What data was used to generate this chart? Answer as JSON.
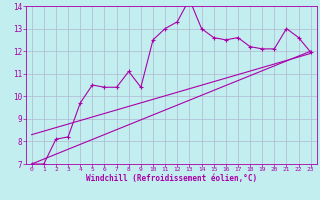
{
  "xlabel": "Windchill (Refroidissement éolien,°C)",
  "xlim": [
    -0.5,
    23.5
  ],
  "ylim": [
    7,
    14
  ],
  "xticks": [
    0,
    1,
    2,
    3,
    4,
    5,
    6,
    7,
    8,
    9,
    10,
    11,
    12,
    13,
    14,
    15,
    16,
    17,
    18,
    19,
    20,
    21,
    22,
    23
  ],
  "yticks": [
    7,
    8,
    9,
    10,
    11,
    12,
    13,
    14
  ],
  "background_color": "#c2eef0",
  "grid_color": "#b0b8d0",
  "line_color": "#aa00aa",
  "curve_x": [
    0,
    1,
    2,
    3,
    4,
    5,
    6,
    7,
    8,
    9,
    10,
    11,
    12,
    13,
    14,
    15,
    16,
    17,
    18,
    19,
    20,
    21,
    22,
    23
  ],
  "curve_y": [
    7.0,
    7.0,
    8.1,
    8.2,
    9.7,
    10.5,
    10.4,
    10.4,
    11.1,
    10.4,
    12.5,
    13.0,
    13.3,
    14.3,
    13.0,
    12.6,
    12.5,
    12.6,
    12.2,
    12.1,
    12.1,
    13.0,
    12.6,
    11.95
  ],
  "line1_x": [
    0,
    23
  ],
  "line1_y": [
    7.0,
    12.0
  ],
  "line2_x": [
    0,
    23
  ],
  "line2_y": [
    8.3,
    11.9
  ]
}
